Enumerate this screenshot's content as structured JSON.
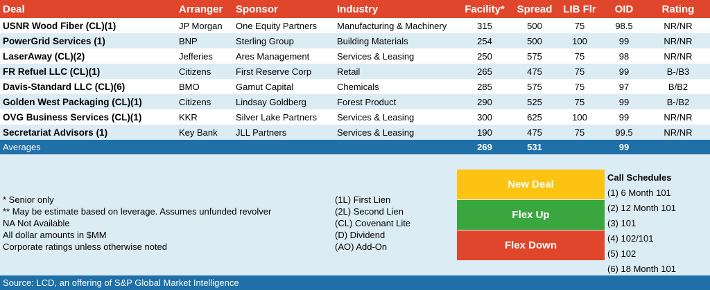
{
  "headers": {
    "deal": "Deal",
    "arranger": "Arranger",
    "sponsor": "Sponsor",
    "industry": "Industry",
    "facility": "Facility*",
    "spread": "Spread",
    "lib_flr": "LIB Flr",
    "oid": "OID",
    "rating": "Rating"
  },
  "deals": [
    {
      "deal": "USNR Wood Fiber (CL)(1)",
      "arranger": "JP Morgan",
      "sponsor": "One Equity Partners",
      "industry": "Manufacturing & Machinery",
      "facility": "315",
      "spread": "500",
      "lib_flr": "75",
      "oid": "98.5",
      "rating": "NR/NR"
    },
    {
      "deal": "PowerGrid Services (1)",
      "arranger": "BNP",
      "sponsor": "Sterling Group",
      "industry": "Building Materials",
      "facility": "254",
      "spread": "500",
      "lib_flr": "100",
      "oid": "99",
      "rating": "NR/NR"
    },
    {
      "deal": "LaserAway (CL)(2)",
      "arranger": "Jefferies",
      "sponsor": "Ares Management",
      "industry": "Services & Leasing",
      "facility": "250",
      "spread": "575",
      "lib_flr": "75",
      "oid": "98",
      "rating": "NR/NR"
    },
    {
      "deal": "FR Refuel LLC (CL)(1)",
      "arranger": "Citizens",
      "sponsor": "First Reserve Corp",
      "industry": "Retail",
      "facility": "265",
      "spread": "475",
      "lib_flr": "75",
      "oid": "99",
      "rating": "B-/B3"
    },
    {
      "deal": "Davis-Standard LLC (CL)(6)",
      "arranger": "BMO",
      "sponsor": "Gamut Capital",
      "industry": "Chemicals",
      "facility": "285",
      "spread": "575",
      "lib_flr": "75",
      "oid": "97",
      "rating": "B/B2"
    },
    {
      "deal": "Golden West Packaging (CL)(1)",
      "arranger": "Citizens",
      "sponsor": "Lindsay Goldberg",
      "industry": "Forest Product",
      "facility": "290",
      "spread": "525",
      "lib_flr": "75",
      "oid": "99",
      "rating": "B-/B2"
    },
    {
      "deal": "OVG Business Services (CL)(1)",
      "arranger": "KKR",
      "sponsor": "Silver Lake Partners",
      "industry": "Services & Leasing",
      "facility": "300",
      "spread": "625",
      "lib_flr": "100",
      "oid": "99",
      "rating": "NR/NR"
    },
    {
      "deal": "Secretariat Advisors (1)",
      "arranger": "Key Bank",
      "sponsor": "JLL Partners",
      "industry": "Services & Leasing",
      "facility": "190",
      "spread": "475",
      "lib_flr": "75",
      "oid": "99.5",
      "rating": "NR/NR"
    }
  ],
  "averages": {
    "label": "Averages",
    "facility": "269",
    "spread": "531",
    "oid": "99"
  },
  "notes_left": [
    "* Senior only",
    "** May be estimate based on leverage. Assumes unfunded revolver",
    "NA Not Available",
    "All dollar amounts in $MM",
    "Corporate ratings unless otherwise noted"
  ],
  "notes_mid": [
    "(1L) First Lien",
    "(2L) Second Lien",
    "(CL) Covenant Lite",
    "(D) Dividend",
    "(AO) Add-On"
  ],
  "legend": {
    "new_deal": "New Deal",
    "flex_up": "Flex Up",
    "flex_down": "Flex Down",
    "colors": {
      "new_deal": "#fcc313",
      "flex_up": "#3aa63e",
      "flex_down": "#e0462b"
    }
  },
  "call_schedules": {
    "title": "Call Schedules",
    "items": [
      "(1) 6 Month 101",
      "(2) 12 Month 101",
      "(3) 101",
      "(4) 102/101",
      "(5) 102",
      "(6) 18 Month 101"
    ]
  },
  "source": "Source: LCD, an offering of S&P Global Market Intelligence",
  "colors": {
    "header": "#e0462b",
    "accent_blue": "#1f6fa8",
    "row_alt": "#dcecf5"
  }
}
